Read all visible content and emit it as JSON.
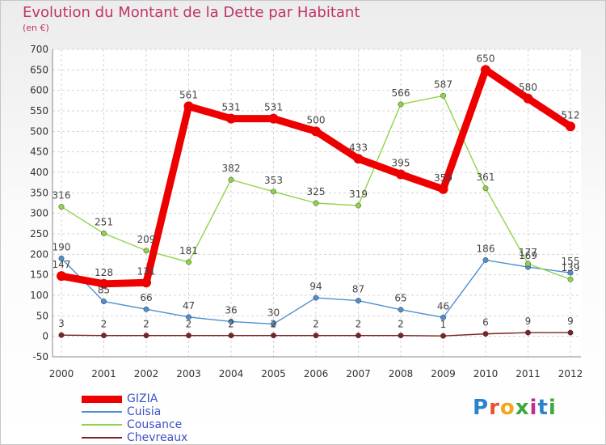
{
  "header": {
    "title": "Evolution du Montant de la Dette par Habitant",
    "subtitle": "(en €)"
  },
  "logo": {
    "text": "Proxiti",
    "colors": [
      "#2b84c9",
      "#e8502b",
      "#f2a71b",
      "#3ba93c",
      "#c42d87",
      "#2b84c9",
      "#3ba93c"
    ]
  },
  "chart_data": {
    "type": "line",
    "x": [
      "2000",
      "2001",
      "2002",
      "2003",
      "2004",
      "2005",
      "2006",
      "2007",
      "2008",
      "2009",
      "2010",
      "2011",
      "2012"
    ],
    "ylim": [
      -50,
      700
    ],
    "yticks": [
      -50,
      0,
      50,
      100,
      150,
      200,
      250,
      300,
      350,
      400,
      450,
      500,
      550,
      600,
      650,
      700
    ],
    "grid": true,
    "legend_position": "bottom-left",
    "series": [
      {
        "name": "GIZIA",
        "color": "#ee0000",
        "values": [
          147,
          128,
          131,
          561,
          531,
          531,
          500,
          433,
          395,
          359,
          650,
          580,
          512
        ]
      },
      {
        "name": "Cuisia",
        "color": "#4e8fd0",
        "values": [
          190,
          85,
          66,
          47,
          36,
          30,
          94,
          87,
          65,
          46,
          186,
          169,
          155
        ]
      },
      {
        "name": "Cousance",
        "color": "#8fd448",
        "values": [
          316,
          251,
          209,
          181,
          382,
          353,
          325,
          319,
          566,
          587,
          361,
          177,
          139
        ]
      },
      {
        "name": "Chevreaux",
        "color": "#7b2424",
        "values": [
          3,
          2,
          2,
          2,
          2,
          2,
          2,
          2,
          2,
          1,
          6,
          9,
          9
        ]
      }
    ]
  }
}
